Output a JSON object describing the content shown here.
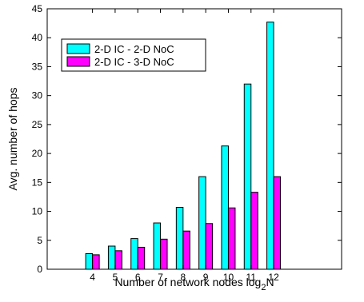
{
  "chart_data": {
    "type": "bar",
    "title": "",
    "xlabel": "Number of network nodes log",
    "xlabel_subscript": "2",
    "xlabel_suffix": "N",
    "ylabel": "Avg. number of hops",
    "categories": [
      "4",
      "5",
      "6",
      "7",
      "8",
      "9",
      "10",
      "11",
      "12"
    ],
    "ylim": [
      0,
      45
    ],
    "yticks": [
      "0",
      "5",
      "10",
      "15",
      "20",
      "25",
      "30",
      "35",
      "40",
      "45"
    ],
    "xlim": [
      1,
      14
    ],
    "grid": false,
    "legend_position": "top-left",
    "series": [
      {
        "name": "2-D IC - 2-D NoC",
        "color": "#00ffff",
        "values": [
          2.7,
          4.0,
          5.3,
          8.0,
          10.7,
          16.0,
          21.3,
          32.0,
          42.7
        ]
      },
      {
        "name": "2-D IC - 3-D NoC",
        "color": "#ff00ff",
        "values": [
          2.5,
          3.2,
          3.8,
          5.2,
          6.6,
          7.9,
          10.6,
          13.3,
          16.0
        ]
      }
    ]
  }
}
